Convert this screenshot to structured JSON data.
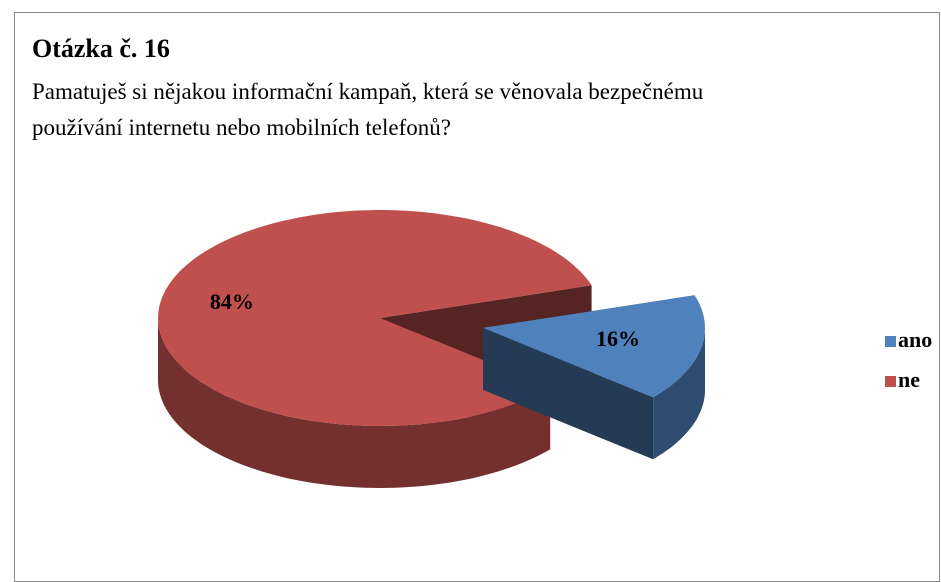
{
  "chart_data": {
    "type": "pie3d",
    "title": "Otázka č. 16",
    "subtitle": "Pamatuješ si nějakou informační kampaň, která se věnovala bezpečnému používání internetu nebo mobilních telefonů?",
    "categories": [
      "ano",
      "ne"
    ],
    "values": [
      16,
      84
    ],
    "value_labels": [
      "16%",
      "84%"
    ],
    "colors": [
      "#4f81bd",
      "#c0504d"
    ],
    "legend": "right"
  }
}
